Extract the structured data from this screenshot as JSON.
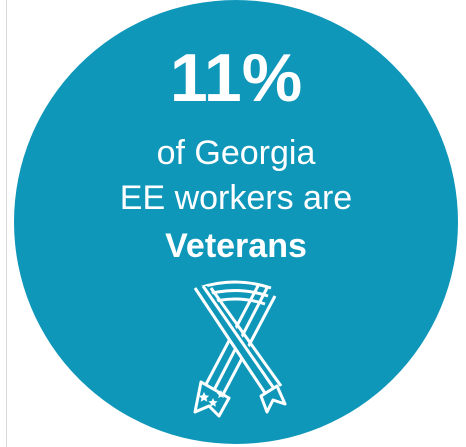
{
  "badge": {
    "stat": "11%",
    "line1": "of Georgia",
    "line2": "EE workers are",
    "line3": "Veterans",
    "icon": "veterans-ribbon-icon",
    "bg_color": "#0f97ba",
    "text_color": "#ffffff"
  }
}
